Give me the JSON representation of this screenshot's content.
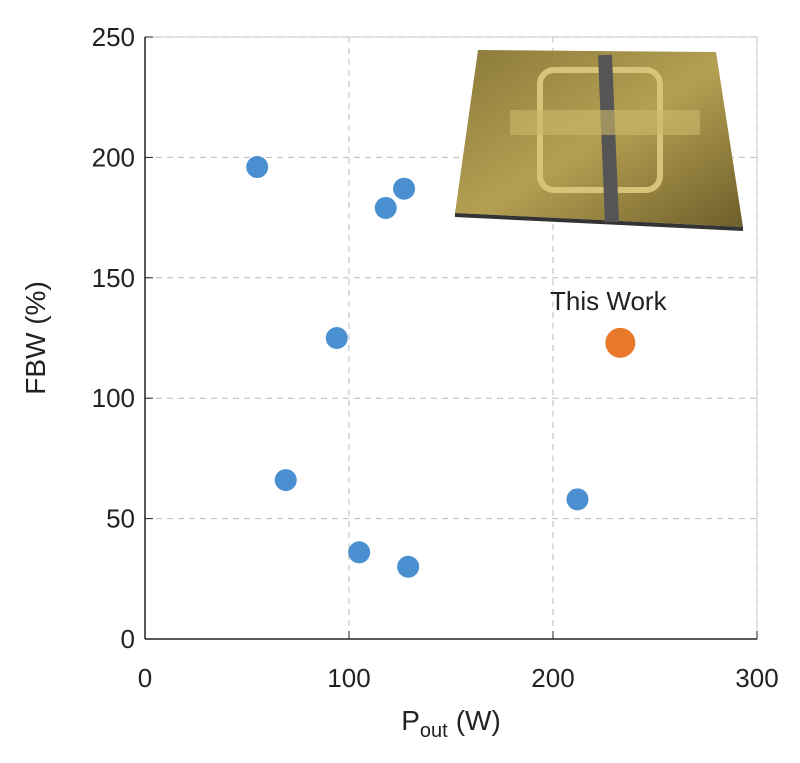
{
  "chart_data": {
    "type": "scatter",
    "xlabel": {
      "main": "P",
      "subscript": "out",
      "unit": "(W)"
    },
    "ylabel": "FBW (%)",
    "xlim": [
      0,
      300
    ],
    "xticks": [
      0,
      100,
      200,
      300
    ],
    "ylim": [
      0,
      250
    ],
    "yticks": [
      0,
      50,
      100,
      150,
      200,
      250
    ],
    "grid": true,
    "series": [
      {
        "color": "#4a90d0",
        "x": [
          55,
          69,
          94,
          105,
          118,
          127,
          129,
          212
        ],
        "values": [
          196,
          66,
          125,
          36,
          179,
          187,
          30,
          58
        ]
      },
      {
        "name": "This Work",
        "color": "#e8782a",
        "x": [
          233
        ],
        "values": [
          123
        ]
      }
    ]
  }
}
